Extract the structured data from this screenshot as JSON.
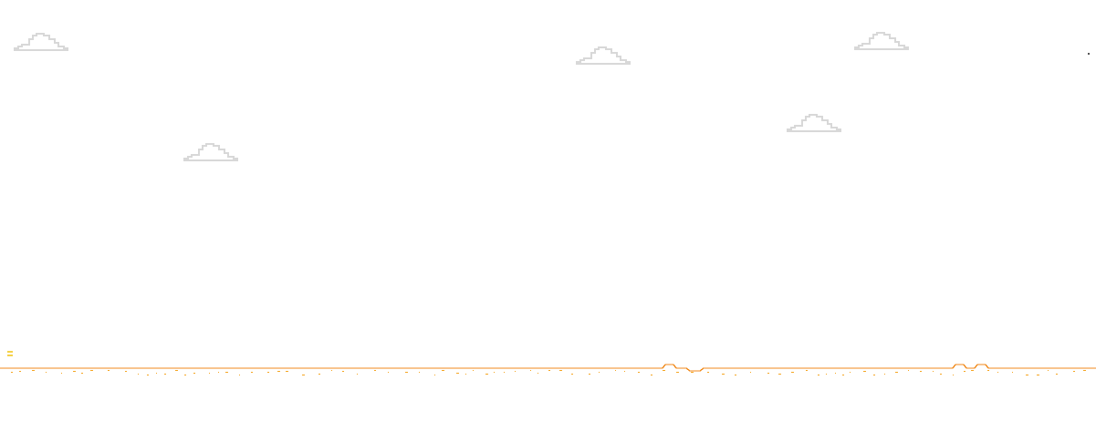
{
  "game": {
    "palette": {
      "background": "#ffffff",
      "cloud": "#d8d8d8",
      "ground": "#f08a1c",
      "ground_speckle": "#f5a623",
      "runner": "#f5d24a"
    },
    "icons": {
      "cloud": "cloud-icon",
      "runner": "runner-icon"
    }
  }
}
